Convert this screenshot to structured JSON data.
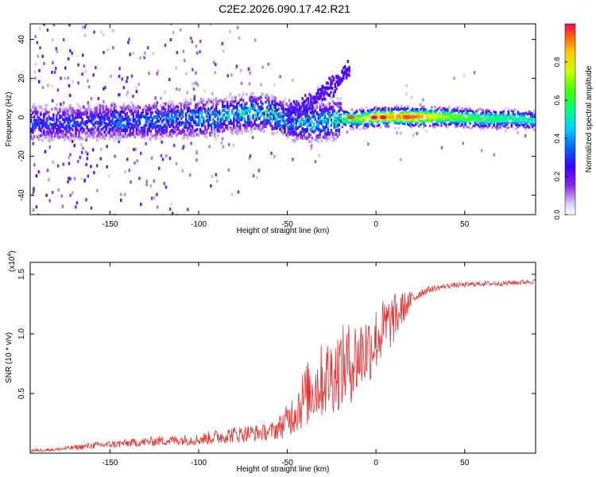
{
  "title": "C2E2.2026.090.17.42.R21",
  "chart_data": [
    {
      "type": "heatmap",
      "xlabel": "Height of straight line (km)",
      "ylabel": "Frequency (Hz)",
      "xlim": [
        -195,
        90
      ],
      "ylim": [
        -50,
        48
      ],
      "xticks": [
        -150,
        -100,
        -50,
        0,
        50
      ],
      "yticks": [
        -40,
        -20,
        0,
        20,
        40
      ],
      "colorbar": {
        "label": "Normalized spectral amplitude",
        "range": [
          0,
          1
        ],
        "ticks": [
          0.0,
          0.2,
          0.4,
          0.6,
          0.8
        ],
        "tick_labels": [
          "0.0",
          "0.2",
          "0.4",
          "0.6",
          "0.8"
        ]
      },
      "ridge": {
        "x": [
          -170,
          -150,
          -130,
          -110,
          -90,
          -70,
          -60,
          -50,
          -40,
          -30,
          -20,
          -10,
          0,
          20,
          40,
          60,
          80,
          90
        ],
        "freq": [
          -3,
          -2,
          -2,
          -1,
          0,
          3,
          2,
          -2,
          -3,
          -2,
          -1,
          -1,
          0,
          0,
          0,
          -1,
          -1,
          -2
        ],
        "amplitude": [
          0.35,
          0.4,
          0.4,
          0.45,
          0.5,
          0.55,
          0.55,
          0.5,
          0.5,
          0.55,
          0.6,
          0.7,
          0.85,
          0.95,
          0.7,
          0.6,
          0.55,
          0.5
        ]
      },
      "hotspots": [
        {
          "x": -14,
          "freq": 0,
          "amplitude": 0.95
        },
        {
          "x": -1,
          "freq": 0,
          "amplitude": 1.0
        },
        {
          "x": 4,
          "freq": 0,
          "amplitude": 1.0
        },
        {
          "x": 17,
          "freq": 0,
          "amplitude": 0.95
        }
      ],
      "branch": {
        "x": [
          -50,
          -40,
          -30,
          -20,
          -15
        ],
        "freq": [
          2,
          6,
          13,
          20,
          25
        ]
      }
    },
    {
      "type": "line",
      "xlabel": "Height of straight line (km)",
      "ylabel": "SNR (10 * v/v)",
      "multiplier": "(x10",
      "multiplier_exp": "4",
      "multiplier_close": ")",
      "xlim": [
        -195,
        90
      ],
      "ylim": [
        0,
        1.6
      ],
      "xticks": [
        -150,
        -100,
        -50,
        0,
        50
      ],
      "yticks": [
        0.5,
        1.0,
        1.5
      ],
      "ytick_labels": [
        "0.5",
        "1.0",
        "1.5"
      ],
      "color": "#e83030",
      "series": [
        {
          "x": [
            -195,
            -180,
            -160,
            -140,
            -120,
            -100,
            -90,
            -80,
            -70,
            -60,
            -55,
            -50,
            -45,
            -40,
            -35,
            -30,
            -25,
            -20,
            -15,
            -10,
            -5,
            0,
            5,
            10,
            15,
            20,
            25,
            30,
            40,
            50,
            60,
            70,
            80,
            90
          ],
          "y": [
            0.02,
            0.03,
            0.06,
            0.08,
            0.1,
            0.11,
            0.13,
            0.15,
            0.16,
            0.17,
            0.2,
            0.26,
            0.35,
            0.45,
            0.52,
            0.58,
            0.62,
            0.68,
            0.72,
            0.78,
            0.84,
            0.93,
            1.02,
            1.1,
            1.2,
            1.28,
            1.34,
            1.37,
            1.4,
            1.41,
            1.42,
            1.42,
            1.43,
            1.44
          ],
          "noise": [
            0.02,
            0.02,
            0.04,
            0.05,
            0.06,
            0.07,
            0.09,
            0.1,
            0.1,
            0.1,
            0.14,
            0.2,
            0.3,
            0.38,
            0.42,
            0.46,
            0.48,
            0.5,
            0.5,
            0.48,
            0.45,
            0.4,
            0.38,
            0.3,
            0.2,
            0.1,
            0.06,
            0.04,
            0.03,
            0.03,
            0.03,
            0.03,
            0.03,
            0.03
          ]
        }
      ]
    }
  ]
}
